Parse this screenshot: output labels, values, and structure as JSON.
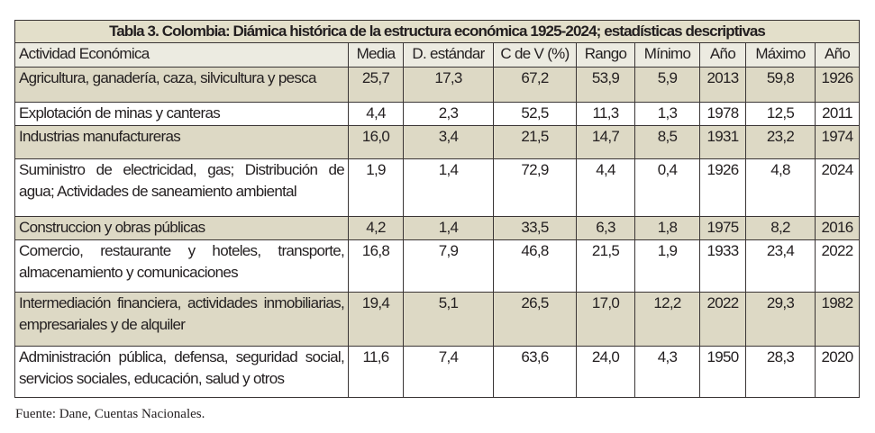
{
  "title": "Tabla 3. Colombia: Diámica histórica de la estructura económica 1925-2024; estadísticas descriptivas",
  "columns": [
    "Actividad Económica",
    "Media",
    "D. estándar",
    "C de V (%)",
    "Rango",
    "Mínimo",
    "Año",
    "Máximo",
    "Año"
  ],
  "rows": [
    {
      "activity": "Agricultura, ganadería, caza, silvicultura y pesca",
      "values": [
        "25,7",
        "17,3",
        "67,2",
        "53,9",
        "5,9",
        "2013",
        "59,8",
        "1926"
      ]
    },
    {
      "activity": "Explotación de minas y canteras",
      "values": [
        "4,4",
        "2,3",
        "52,5",
        "11,3",
        "1,3",
        "1978",
        "12,5",
        "2011"
      ]
    },
    {
      "activity": "Industrias manufactureras",
      "values": [
        "16,0",
        "3,4",
        "21,5",
        "14,7",
        "8,5",
        "1931",
        "23,2",
        "1974"
      ]
    },
    {
      "activity": "Suministro de electricidad, gas; Distribución de agua; Actividades de saneamiento ambiental",
      "values": [
        "1,9",
        "1,4",
        "72,9",
        "4,4",
        "0,4",
        "1926",
        "4,8",
        "2024"
      ]
    },
    {
      "activity": "Construccion y obras públicas",
      "values": [
        "4,2",
        "1,4",
        "33,5",
        "6,3",
        "1,8",
        "1975",
        "8,2",
        "2016"
      ]
    },
    {
      "activity": "Comercio, restaurante y hoteles, transporte, almacenamiento y comunicaciones",
      "values": [
        "16,8",
        "7,9",
        "46,8",
        "21,5",
        "1,9",
        "1933",
        "23,4",
        "2022"
      ]
    },
    {
      "activity": "Intermediación financiera, actividades inmobiliarias, empresariales y de alquiler",
      "values": [
        "19,4",
        "5,1",
        "26,5",
        "17,0",
        "12,2",
        "2022",
        "29,3",
        "1982"
      ]
    },
    {
      "activity": "Administración pública, defensa, seguridad social, servicios sociales, educación, salud y otros",
      "values": [
        "11,6",
        "7,4",
        "63,6",
        "24,0",
        "4,3",
        "1950",
        "28,3",
        "2020"
      ]
    }
  ],
  "source": "Fuente: Dane, Cuentas Nacionales."
}
